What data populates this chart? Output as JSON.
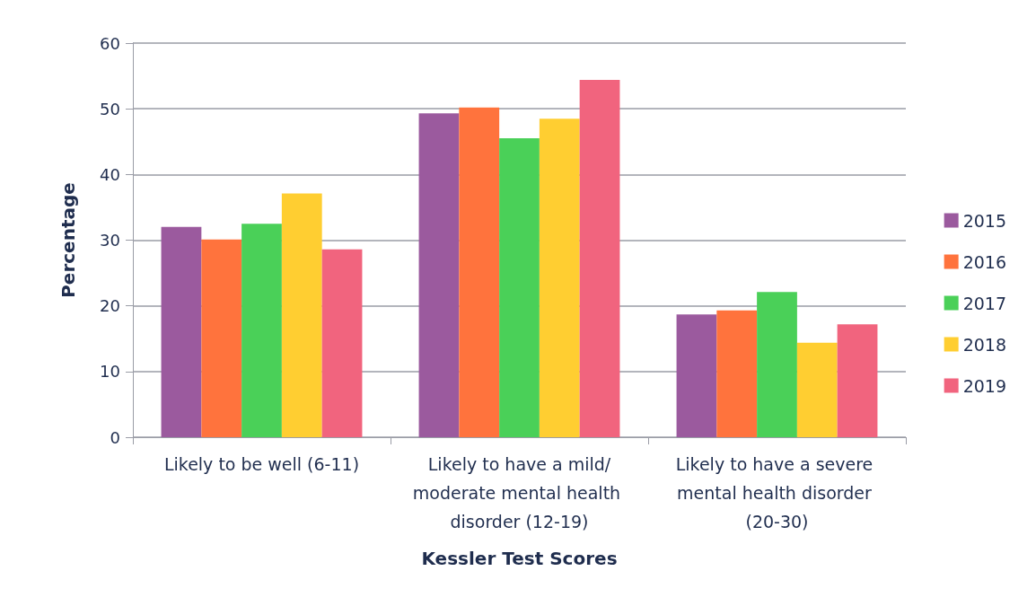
{
  "chart_data": {
    "type": "bar",
    "xlabel": "Kessler Test Scores",
    "ylabel": "Percentage",
    "categories": [
      "Likely to be well (6-11)",
      "Likely to have a mild/moderate mental health disorder (12-19)",
      "Likely to have a severe mental health disorder (20-30)"
    ],
    "series": [
      {
        "name": "2015",
        "color": "#9b5a9e",
        "values": [
          32.0,
          49.3,
          18.7
        ]
      },
      {
        "name": "2016",
        "color": "#ff733d",
        "values": [
          30.1,
          50.2,
          19.3
        ]
      },
      {
        "name": "2017",
        "color": "#4ad058",
        "values": [
          32.5,
          45.5,
          22.1
        ]
      },
      {
        "name": "2018",
        "color": "#ffce31",
        "values": [
          37.1,
          48.5,
          14.4
        ]
      },
      {
        "name": "2019",
        "color": "#f1647e",
        "values": [
          28.6,
          54.4,
          17.2
        ]
      }
    ],
    "ylim": [
      0,
      60
    ],
    "yticks": [
      0,
      10,
      20,
      30,
      40,
      50,
      60
    ],
    "grid": "y",
    "legend": "right"
  }
}
